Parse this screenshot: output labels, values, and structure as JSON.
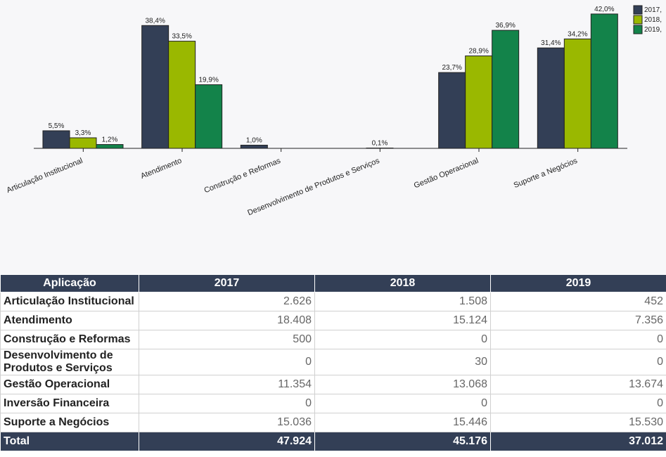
{
  "chart_data": {
    "type": "bar",
    "categories": [
      "Articulação Institucional",
      "Atendimento",
      "Construção e Reformas",
      "Desenvolvimento de Produtos e Serviços",
      "Gestão Operacional",
      "Suporte a Negócios"
    ],
    "series": [
      {
        "name": "2017,",
        "color": "#333f56",
        "values": [
          5.5,
          38.4,
          1.0,
          0,
          23.7,
          31.4
        ],
        "value_labels": [
          "5,5%",
          "38,4%",
          "1,0%",
          null,
          "23,7%",
          "31,4%"
        ]
      },
      {
        "name": "2018,",
        "color": "#9ab800",
        "values": [
          3.3,
          33.5,
          0,
          0.1,
          28.9,
          34.2
        ],
        "value_labels": [
          "3,3%",
          "33,5%",
          null,
          "0,1%",
          "28,9%",
          "34,2%"
        ]
      },
      {
        "name": "2019,",
        "color": "#13834a",
        "values": [
          1.2,
          19.9,
          0,
          0,
          36.9,
          42.0
        ],
        "value_labels": [
          "1,2%",
          "19,9%",
          null,
          null,
          "36,9%",
          "42,0%"
        ]
      }
    ],
    "legend": "top-right"
  },
  "table": {
    "header": [
      "Aplicação",
      "2017",
      "2018",
      "2019"
    ],
    "rows": [
      [
        "Articulação Institucional",
        "2.626",
        "1.508",
        "452"
      ],
      [
        "Atendimento",
        "18.408",
        "15.124",
        "7.356"
      ],
      [
        "Construção e Reformas",
        "500",
        "0",
        "0"
      ],
      [
        "Desenvolvimento de Produtos e Serviços",
        "0",
        "30",
        "0"
      ],
      [
        "Gestão Operacional",
        "11.354",
        "13.068",
        "13.674"
      ],
      [
        "Inversão Financeira",
        "0",
        "0",
        "0"
      ],
      [
        "Suporte a Negócios",
        "15.036",
        "15.446",
        "15.530"
      ]
    ],
    "total": [
      "Total",
      "47.924",
      "45.176",
      "37.012"
    ]
  }
}
